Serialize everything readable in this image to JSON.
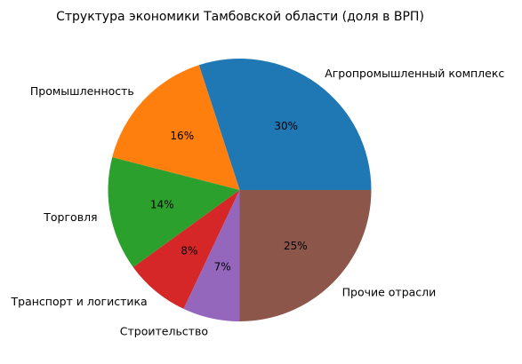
{
  "chart_data": {
    "type": "pie",
    "title": "Структура экономики Тамбовской области (доля в ВРП)",
    "categories": [
      "Агропромышленный комплекс",
      "Промышленность",
      "Торговля",
      "Транспорт и логистика",
      "Строительство",
      "Прочие отрасли"
    ],
    "values": [
      30,
      16,
      14,
      8,
      7,
      25
    ],
    "value_labels": [
      "30%",
      "16%",
      "14%",
      "8%",
      "7%",
      "25%"
    ],
    "colors": [
      "#1f77b4",
      "#ff7f0e",
      "#2ca02c",
      "#d62728",
      "#9467bd",
      "#8c564b"
    ],
    "start_angle_deg": 0,
    "direction": "counterclockwise",
    "legend": "none"
  }
}
